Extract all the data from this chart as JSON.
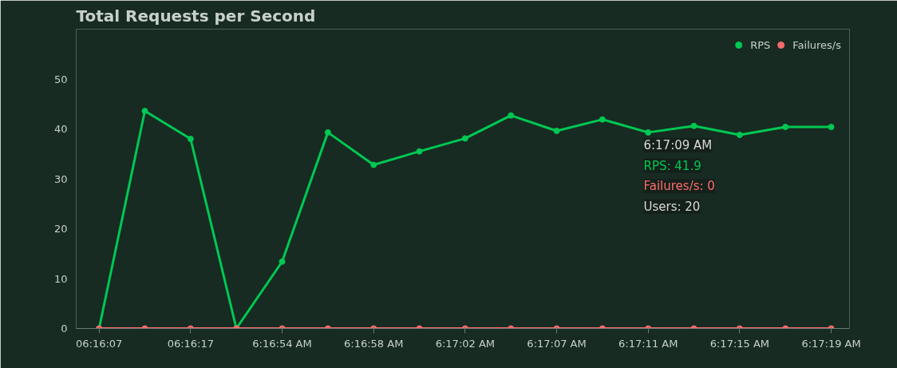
{
  "chart_data": {
    "type": "line",
    "title": "Total Requests per Second",
    "categories": [
      "06:16:07",
      null,
      "06:16:17",
      null,
      "6:16:54 AM",
      null,
      "6:16:58 AM",
      null,
      "6:17:02 AM",
      null,
      "6:17:07 AM",
      null,
      "6:17:11 AM",
      null,
      "6:17:15 AM",
      null,
      "6:17:19 AM"
    ],
    "series": [
      {
        "name": "RPS",
        "color": "#00c853",
        "values": [
          0,
          43.6,
          38.0,
          0,
          13.4,
          39.3,
          32.8,
          35.5,
          38.1,
          42.7,
          39.6,
          41.9,
          39.3,
          40.6,
          38.8,
          40.4,
          40.4
        ]
      },
      {
        "name": "Failures/s",
        "color": "#ff6b6b",
        "values": [
          0,
          0,
          0,
          0,
          0,
          0,
          0,
          0,
          0,
          0,
          0,
          0,
          0,
          0,
          0,
          0,
          0
        ]
      }
    ],
    "ylim": [
      0,
      60
    ],
    "yticks": [
      0,
      10,
      20,
      30,
      40,
      50
    ],
    "grid": false,
    "legend": "top right",
    "marker": "circle",
    "line_style": "solid",
    "annotations": [
      "6:17:09 AM",
      "RPS: 41.9",
      "Failures/s: 0",
      "Users: 20"
    ]
  }
}
